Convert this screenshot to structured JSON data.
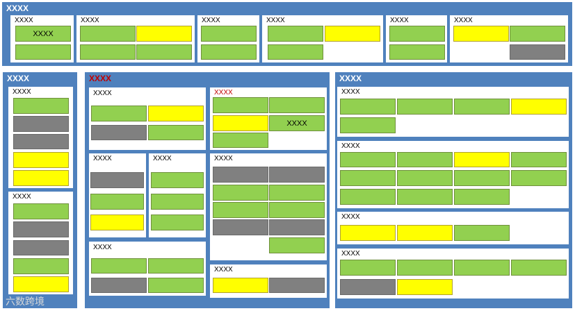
{
  "colors": {
    "panel": "#4f81bd",
    "green": "#92d050",
    "yellow": "#ffff00",
    "gray": "#808080",
    "red_title": "#c00000"
  },
  "top": {
    "title": "XXXX",
    "groups": [
      {
        "title": "XXXX",
        "cell_text": "XXXX"
      },
      {
        "title": "XXXX"
      },
      {
        "title": "XXXX"
      },
      {
        "title": "XXXX"
      },
      {
        "title": "XXXX"
      },
      {
        "title": "XXXX"
      }
    ]
  },
  "left": {
    "title": "XXXX",
    "groups": [
      {
        "title": "XXXX"
      },
      {
        "title": "XXXX"
      }
    ]
  },
  "middle": {
    "title": "XXXX",
    "groups": [
      {
        "title": "XXXX"
      },
      {
        "title": "XXXX",
        "cell_text": "XXXX"
      },
      {
        "title": "XXXX"
      },
      {
        "title": "XXXX"
      },
      {
        "title": "XXXX"
      },
      {
        "title": "XXXX"
      },
      {
        "title": "XXXX"
      }
    ]
  },
  "right": {
    "title": "XXXX",
    "groups": [
      {
        "title": "XXXX"
      },
      {
        "title": "XXXX"
      },
      {
        "title": "XXXX"
      },
      {
        "title": "XXXX"
      }
    ]
  },
  "watermark": "六数跨境"
}
